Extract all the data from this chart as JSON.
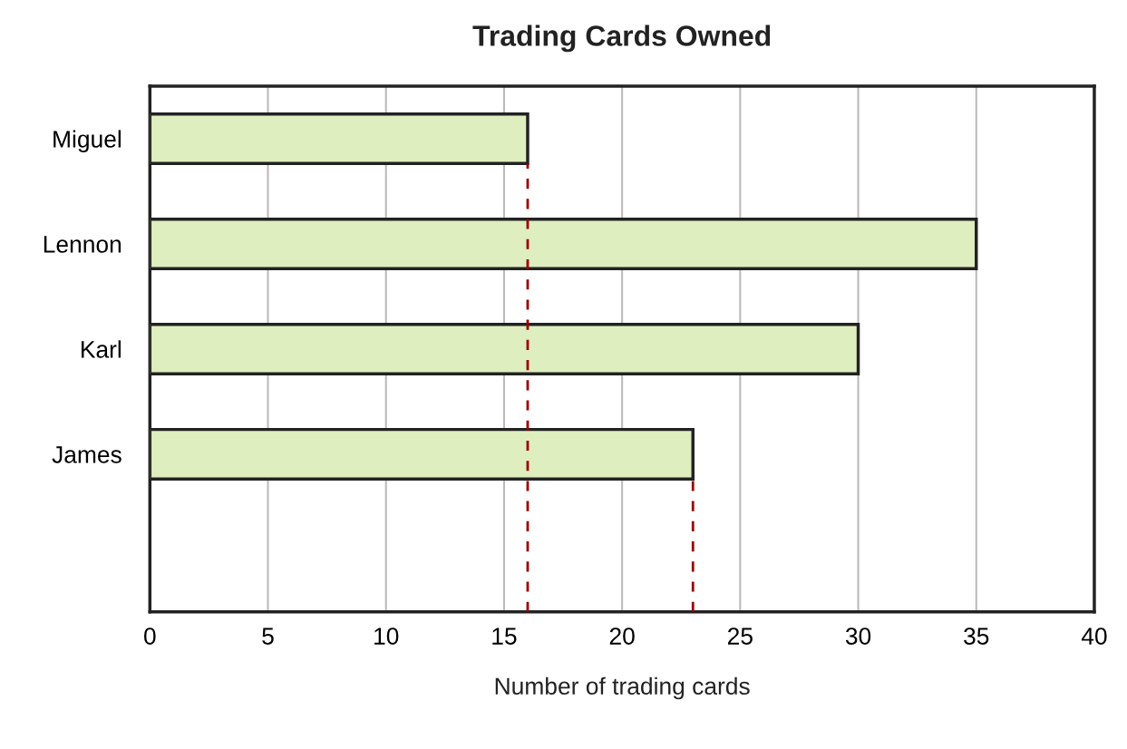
{
  "chart_data": {
    "type": "bar",
    "orientation": "horizontal",
    "title": "Trading Cards Owned",
    "xlabel": "Number of trading cards",
    "categories": [
      "Miguel",
      "Lennon",
      "Karl",
      "James"
    ],
    "values": [
      16,
      35,
      30,
      23
    ],
    "color": "#dfeebf",
    "xlim": [
      0,
      40
    ],
    "xticks": [
      0,
      5,
      10,
      15,
      20,
      25,
      30,
      35,
      40
    ],
    "grid": "x",
    "ref_lines": [
      {
        "axis": "x",
        "value": 16,
        "color": "#990000",
        "line_style": "dashed"
      },
      {
        "axis": "x",
        "value": 23,
        "color": "#990000",
        "line_style": "dashed"
      }
    ]
  }
}
